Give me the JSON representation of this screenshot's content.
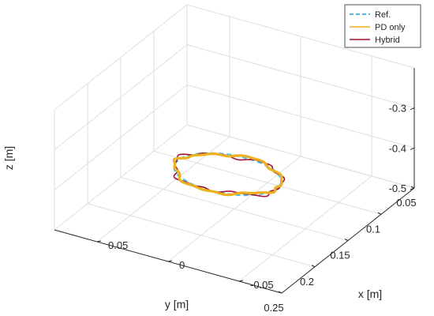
{
  "chart_data": {
    "type": "line",
    "projection": "3d",
    "xlabel": "x [m]",
    "ylabel": "y [m]",
    "zlabel": "z [m]",
    "xlim": [
      -0.08,
      0.08
    ],
    "ylim": [
      0.05,
      0.25
    ],
    "zlim": [
      -0.5,
      -0.2
    ],
    "xticks": [
      -0.05,
      0,
      0.05
    ],
    "yticks": [
      0.05,
      0.1,
      0.15,
      0.2,
      0.25
    ],
    "zticks": [
      -0.5,
      -0.4,
      -0.3
    ],
    "xtick_labels": [
      "-0.05",
      "0",
      "0.05"
    ],
    "ytick_labels": [
      "0.05",
      "0.1",
      "0.15",
      "0.2",
      "0.25"
    ],
    "ztick_labels": [
      "-0.5",
      "-0.4",
      "-0.3"
    ],
    "grid": true,
    "legend_position": "top-right",
    "trajectory_center": {
      "x": 0.0,
      "y": 0.16,
      "z": -0.4
    },
    "series": [
      {
        "name": "Ref.",
        "style": "dashed",
        "color": "#4DBEEE",
        "radius_x": 0.035,
        "radius_y": 0.03
      },
      {
        "name": "PD only",
        "style": "solid",
        "color": "#EDB120",
        "radius_x": 0.035,
        "radius_y": 0.03
      },
      {
        "name": "Hybrid",
        "style": "solid",
        "color": "#A2142F",
        "radius_x": 0.035,
        "radius_y": 0.03
      }
    ]
  }
}
